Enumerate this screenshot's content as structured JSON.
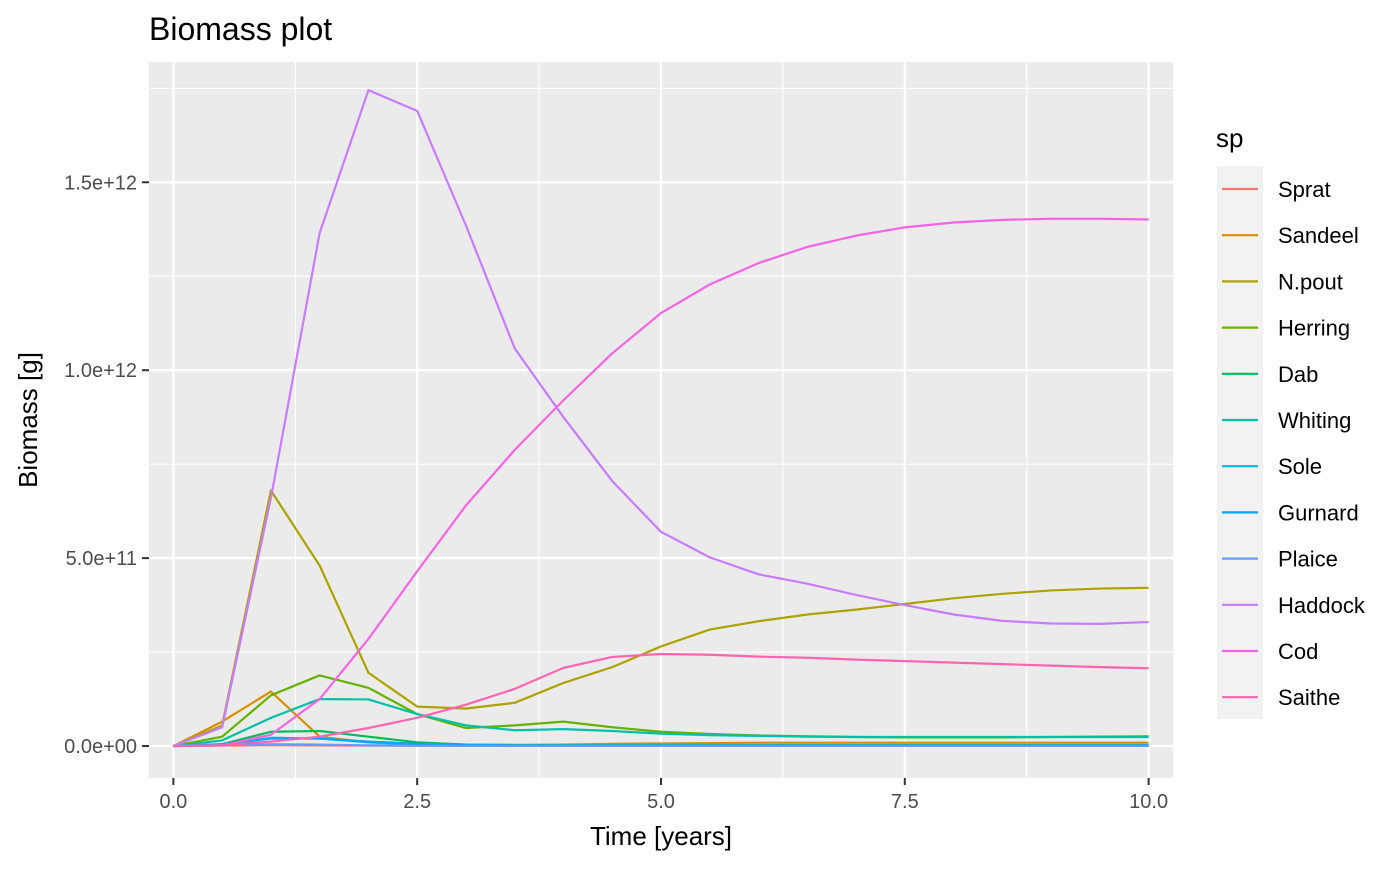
{
  "chart_data": {
    "type": "line",
    "title": "Biomass plot",
    "xlabel": "Time [years]",
    "ylabel": "Biomass [g]",
    "xlim": [
      -0.25,
      10.25
    ],
    "ylim": [
      -85000000000.0,
      1820000000000.0
    ],
    "x_ticks": [
      0,
      2.5,
      5,
      7.5,
      10
    ],
    "x_tick_labels": [
      "0.0",
      "2.5",
      "5.0",
      "7.5",
      "10.0"
    ],
    "y_ticks": [
      0,
      500000000000.0,
      1000000000000.0,
      1500000000000.0
    ],
    "y_tick_labels": [
      "0.0e+00",
      "5.0e+11",
      "1.0e+12",
      "1.5e+12"
    ],
    "grid": true,
    "legend": {
      "title": "sp",
      "position": "right"
    },
    "x": [
      0,
      0.5,
      1,
      1.5,
      2,
      2.5,
      3,
      3.5,
      4,
      4.5,
      5,
      5.5,
      6,
      6.5,
      7,
      7.5,
      8,
      8.5,
      9,
      9.5,
      10
    ],
    "series": [
      {
        "name": "Sprat",
        "color": "#F8766D",
        "values": [
          0,
          1000000000.0,
          2000000000.0,
          1500000000.0,
          1000000000.0,
          800000000.0,
          600000000.0,
          500000000.0,
          500000000.0,
          500000000.0,
          500000000.0,
          500000000.0,
          500000000.0,
          500000000.0,
          500000000.0,
          500000000.0,
          500000000.0,
          500000000.0,
          500000000.0,
          500000000.0,
          500000000.0
        ]
      },
      {
        "name": "Sandeel",
        "color": "#DB8E00",
        "values": [
          0,
          65000000000.0,
          145000000000.0,
          25000000000.0,
          10000000000.0,
          5000000000.0,
          3000000000.0,
          3000000000.0,
          4000000000.0,
          6000000000.0,
          7000000000.0,
          8000000000.0,
          9000000000.0,
          9000000000.0,
          9000000000.0,
          9000000000.0,
          9000000000.0,
          9000000000.0,
          9000000000.0,
          9000000000.0,
          9000000000.0
        ]
      },
      {
        "name": "N.pout",
        "color": "#AEA200",
        "values": [
          0,
          55000000000.0,
          680000000000.0,
          480000000000.0,
          195000000000.0,
          105000000000.0,
          100000000000.0,
          115000000000.0,
          168000000000.0,
          210000000000.0,
          265000000000.0,
          310000000000.0,
          332000000000.0,
          350000000000.0,
          363000000000.0,
          378000000000.0,
          393000000000.0,
          405000000000.0,
          414000000000.0,
          419000000000.0,
          421000000000.0
        ]
      },
      {
        "name": "Herring",
        "color": "#64B200",
        "values": [
          0,
          25000000000.0,
          135000000000.0,
          188000000000.0,
          155000000000.0,
          85000000000.0,
          48000000000.0,
          55000000000.0,
          65000000000.0,
          50000000000.0,
          38000000000.0,
          32000000000.0,
          28000000000.0,
          26000000000.0,
          24000000000.0,
          23000000000.0,
          23000000000.0,
          23000000000.0,
          24000000000.0,
          25000000000.0,
          26000000000.0
        ]
      },
      {
        "name": "Dab",
        "color": "#00BD5C",
        "values": [
          0,
          5000000000.0,
          38000000000.0,
          40000000000.0,
          25000000000.0,
          10000000000.0,
          4000000000.0,
          3000000000.0,
          3000000000.0,
          3000000000.0,
          3000000000.0,
          3000000000.0,
          3000000000.0,
          3000000000.0,
          3000000000.0,
          3000000000.0,
          3000000000.0,
          3000000000.0,
          3000000000.0,
          3000000000.0,
          3000000000.0
        ]
      },
      {
        "name": "Whiting",
        "color": "#00C1A7",
        "values": [
          0,
          15000000000.0,
          75000000000.0,
          125000000000.0,
          124000000000.0,
          85000000000.0,
          55000000000.0,
          42000000000.0,
          45000000000.0,
          40000000000.0,
          33000000000.0,
          29000000000.0,
          27000000000.0,
          25000000000.0,
          24000000000.0,
          24000000000.0,
          24000000000.0,
          24000000000.0,
          24000000000.0,
          24000000000.0,
          24000000000.0
        ]
      },
      {
        "name": "Sole",
        "color": "#00BADE",
        "values": [
          0,
          3000000000.0,
          22000000000.0,
          20000000000.0,
          10000000000.0,
          4000000000.0,
          2000000000.0,
          1000000000.0,
          1000000000.0,
          1000000000.0,
          1000000000.0,
          1000000000.0,
          1000000000.0,
          1000000000.0,
          1000000000.0,
          1000000000.0,
          1000000000.0,
          1000000000.0,
          1000000000.0,
          1000000000.0,
          1000000000.0
        ]
      },
      {
        "name": "Gurnard",
        "color": "#00A6FF",
        "values": [
          0,
          5000000000.0,
          20000000000.0,
          20000000000.0,
          12000000000.0,
          6000000000.0,
          3000000000.0,
          2000000000.0,
          2000000000.0,
          2000000000.0,
          2000000000.0,
          2000000000.0,
          2000000000.0,
          2000000000.0,
          2000000000.0,
          2000000000.0,
          2000000000.0,
          2000000000.0,
          2000000000.0,
          2000000000.0,
          2000000000.0
        ]
      },
      {
        "name": "Plaice",
        "color": "#619CFF",
        "values": [
          0,
          2000000000.0,
          5000000000.0,
          4000000000.0,
          2000000000.0,
          1000000000.0,
          500000000.0,
          500000000.0,
          500000000.0,
          500000000.0,
          500000000.0,
          500000000.0,
          500000000.0,
          500000000.0,
          500000000.0,
          500000000.0,
          500000000.0,
          500000000.0,
          500000000.0,
          500000000.0,
          500000000.0
        ]
      },
      {
        "name": "Haddock",
        "color": "#C77CFF",
        "values": [
          0,
          50000000000.0,
          660000000000.0,
          1365000000000.0,
          1745000000000.0,
          1690000000000.0,
          1385000000000.0,
          1058000000000.0,
          875000000000.0,
          705000000000.0,
          570000000000.0,
          502000000000.0,
          457000000000.0,
          432000000000.0,
          402000000000.0,
          375000000000.0,
          350000000000.0,
          333000000000.0,
          326000000000.0,
          325000000000.0,
          330000000000.0
        ]
      },
      {
        "name": "Cod",
        "color": "#F564E3",
        "values": [
          0,
          2000000000.0,
          30000000000.0,
          125000000000.0,
          285000000000.0,
          465000000000.0,
          640000000000.0,
          788000000000.0,
          920000000000.0,
          1045000000000.0,
          1152000000000.0,
          1228000000000.0,
          1285000000000.0,
          1328000000000.0,
          1358000000000.0,
          1380000000000.0,
          1393000000000.0,
          1400000000000.0,
          1403000000000.0,
          1403000000000.0,
          1401000000000.0
        ]
      },
      {
        "name": "Saithe",
        "color": "#FF64B0",
        "values": [
          0,
          2000000000.0,
          12000000000.0,
          25000000000.0,
          48000000000.0,
          75000000000.0,
          110000000000.0,
          152000000000.0,
          208000000000.0,
          237000000000.0,
          245000000000.0,
          243000000000.0,
          238000000000.0,
          235000000000.0,
          230000000000.0,
          226000000000.0,
          222000000000.0,
          218000000000.0,
          214000000000.0,
          210000000000.0,
          207000000000.0
        ]
      }
    ]
  }
}
